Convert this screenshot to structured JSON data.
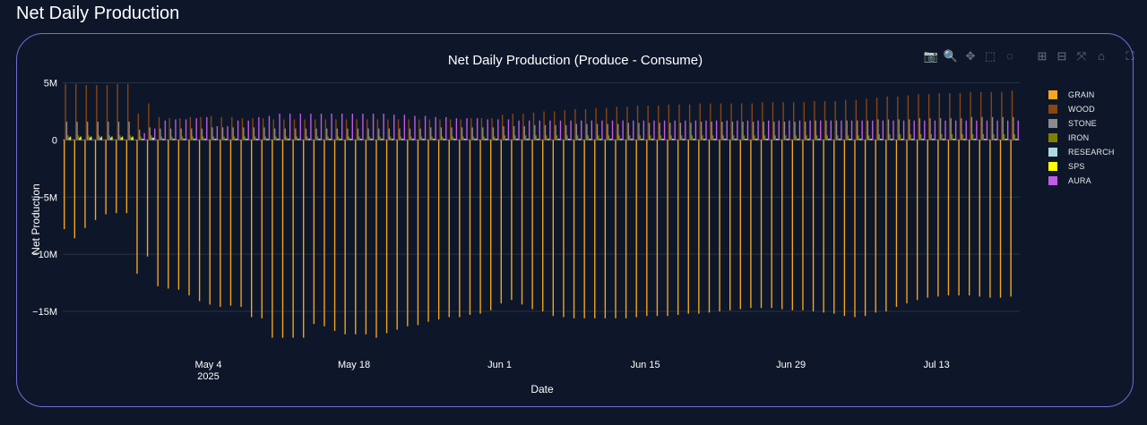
{
  "page": {
    "title": "Net Daily Production"
  },
  "modebar": {
    "buttons": [
      {
        "name": "camera-icon",
        "glyph": "📷"
      },
      {
        "name": "zoom-icon",
        "glyph": "🔍"
      },
      {
        "name": "pan-icon",
        "glyph": "✥"
      },
      {
        "name": "box-select-icon",
        "glyph": "⬚"
      },
      {
        "name": "lasso-select-icon",
        "glyph": "◌"
      },
      {
        "name": "zoom-in-icon",
        "glyph": "⊞"
      },
      {
        "name": "zoom-out-icon",
        "glyph": "⊟"
      },
      {
        "name": "autoscale-icon",
        "glyph": "⤧"
      },
      {
        "name": "reset-axes-icon",
        "glyph": "⌂"
      },
      {
        "name": "fullscreen-icon",
        "glyph": "⛶"
      }
    ]
  },
  "chart_data": {
    "type": "bar",
    "title": "Net Daily Production (Produce - Consume)",
    "xlabel": "Date",
    "ylabel": "Net Production",
    "ylim": [
      -17500000,
      5200000
    ],
    "xrange": [
      "2025-04-20",
      "2025-07-21"
    ],
    "yticks": [
      {
        "value": 5000000,
        "label": "5M"
      },
      {
        "value": 0,
        "label": "0"
      },
      {
        "value": -5000000,
        "label": "−5M"
      },
      {
        "value": -10000000,
        "label": "−10M"
      },
      {
        "value": -15000000,
        "label": "−15M"
      }
    ],
    "xticks": [
      {
        "date": "2025-05-04",
        "label": "May 4",
        "sub": "2025"
      },
      {
        "date": "2025-05-18",
        "label": "May 18",
        "sub": ""
      },
      {
        "date": "2025-06-01",
        "label": "Jun 1",
        "sub": ""
      },
      {
        "date": "2025-06-15",
        "label": "Jun 15",
        "sub": ""
      },
      {
        "date": "2025-06-29",
        "label": "Jun 29",
        "sub": ""
      },
      {
        "date": "2025-07-13",
        "label": "Jul 13",
        "sub": ""
      }
    ],
    "grid": true,
    "legend_position": "right",
    "colors": {
      "GRAIN": "#f5a623",
      "WOOD": "#8b4513",
      "STONE": "#8c8c8c",
      "IRON": "#808000",
      "RESEARCH": "#add8e6",
      "SPS": "#ffff00",
      "AURA": "#c15ce8"
    },
    "x": [
      "2025-04-20",
      "2025-04-21",
      "2025-04-22",
      "2025-04-23",
      "2025-04-24",
      "2025-04-25",
      "2025-04-26",
      "2025-04-27",
      "2025-04-28",
      "2025-04-29",
      "2025-04-30",
      "2025-05-01",
      "2025-05-02",
      "2025-05-03",
      "2025-05-04",
      "2025-05-05",
      "2025-05-06",
      "2025-05-07",
      "2025-05-08",
      "2025-05-09",
      "2025-05-10",
      "2025-05-11",
      "2025-05-12",
      "2025-05-13",
      "2025-05-14",
      "2025-05-15",
      "2025-05-16",
      "2025-05-17",
      "2025-05-18",
      "2025-05-19",
      "2025-05-20",
      "2025-05-21",
      "2025-05-22",
      "2025-05-23",
      "2025-05-24",
      "2025-05-25",
      "2025-05-26",
      "2025-05-27",
      "2025-05-28",
      "2025-05-29",
      "2025-05-30",
      "2025-05-31",
      "2025-06-01",
      "2025-06-02",
      "2025-06-03",
      "2025-06-04",
      "2025-06-05",
      "2025-06-06",
      "2025-06-07",
      "2025-06-08",
      "2025-06-09",
      "2025-06-10",
      "2025-06-11",
      "2025-06-12",
      "2025-06-13",
      "2025-06-14",
      "2025-06-15",
      "2025-06-16",
      "2025-06-17",
      "2025-06-18",
      "2025-06-19",
      "2025-06-20",
      "2025-06-21",
      "2025-06-22",
      "2025-06-23",
      "2025-06-24",
      "2025-06-25",
      "2025-06-26",
      "2025-06-27",
      "2025-06-28",
      "2025-06-29",
      "2025-06-30",
      "2025-07-01",
      "2025-07-02",
      "2025-07-03",
      "2025-07-04",
      "2025-07-05",
      "2025-07-06",
      "2025-07-07",
      "2025-07-08",
      "2025-07-09",
      "2025-07-10",
      "2025-07-11",
      "2025-07-12",
      "2025-07-13",
      "2025-07-14",
      "2025-07-15",
      "2025-07-16",
      "2025-07-17",
      "2025-07-18",
      "2025-07-19",
      "2025-07-20"
    ],
    "series": [
      {
        "name": "GRAIN",
        "values": [
          -7800000,
          -8600000,
          -7700000,
          -7000000,
          -6500000,
          -6400000,
          -6400000,
          -11700000,
          -10200000,
          -12800000,
          -13000000,
          -13100000,
          -13600000,
          -14100000,
          -14400000,
          -14600000,
          -14500000,
          -14600000,
          -15500000,
          -15600000,
          -17300000,
          -17300000,
          -17300000,
          -17300000,
          -16100000,
          -16300000,
          -16700000,
          -17000000,
          -17000000,
          -17000000,
          -17300000,
          -16900000,
          -16600000,
          -16300000,
          -16200000,
          -15900000,
          -15700000,
          -15500000,
          -15500000,
          -15300000,
          -15200000,
          -14900000,
          -14300000,
          -14000000,
          -14400000,
          -14800000,
          -15000000,
          -15400000,
          -15500000,
          -15600000,
          -15600000,
          -15600000,
          -15600000,
          -15600000,
          -15600000,
          -15500000,
          -15400000,
          -15400000,
          -15400000,
          -15300000,
          -15200000,
          -15200000,
          -15100000,
          -15000000,
          -14900000,
          -14800000,
          -14700000,
          -14700000,
          -14700000,
          -14800000,
          -14900000,
          -14900000,
          -15000000,
          -15100000,
          -15200000,
          -15400000,
          -15500000,
          -15400000,
          -15100000,
          -15000000,
          -14600000,
          -14300000,
          -14000000,
          -13800000,
          -13700000,
          -13600000,
          -13600000,
          -13600000,
          -13700000,
          -13800000,
          -13800000,
          -13700000
        ]
      },
      {
        "name": "WOOD",
        "values": [
          4900000,
          4900000,
          4800000,
          4800000,
          4800000,
          4900000,
          4900000,
          2300000,
          3200000,
          2000000,
          1900000,
          1900000,
          2000000,
          2000000,
          2100000,
          2000000,
          2000000,
          1900000,
          1900000,
          1900000,
          1800000,
          1800000,
          1800000,
          1800000,
          1800000,
          1800000,
          1800000,
          1800000,
          1800000,
          1800000,
          1800000,
          1800000,
          1800000,
          1800000,
          1800000,
          1800000,
          1800000,
          1800000,
          1800000,
          1900000,
          1900000,
          1900000,
          2200000,
          2300000,
          2300000,
          2400000,
          2500000,
          2500000,
          2600000,
          2700000,
          2700000,
          2800000,
          2800000,
          2900000,
          2900000,
          3000000,
          3000000,
          3000000,
          3100000,
          3100000,
          3100000,
          3200000,
          3200000,
          3200000,
          3200000,
          3200000,
          3200000,
          3300000,
          3300000,
          3300000,
          3300000,
          3300000,
          3400000,
          3400000,
          3400000,
          3500000,
          3500000,
          3600000,
          3700000,
          3800000,
          3800000,
          3900000,
          4000000,
          4000000,
          4100000,
          4100000,
          4100000,
          4200000,
          4200000,
          4200000,
          4200000,
          4300000
        ]
      },
      {
        "name": "STONE",
        "values": [
          1600000,
          1600000,
          1600000,
          1600000,
          1600000,
          1600000,
          1600000,
          900000,
          1100000,
          1000000,
          1000000,
          1000000,
          1000000,
          1000000,
          1100000,
          1100000,
          1100000,
          1100000,
          1100000,
          1100000,
          1000000,
          1000000,
          1000000,
          1000000,
          1000000,
          1000000,
          1000000,
          1000000,
          1000000,
          1000000,
          1000000,
          1000000,
          1000000,
          1000000,
          1000000,
          1100000,
          1100000,
          1100000,
          1100000,
          1100000,
          1100000,
          1100000,
          1200000,
          1200000,
          1200000,
          1300000,
          1300000,
          1300000,
          1300000,
          1400000,
          1400000,
          1400000,
          1400000,
          1400000,
          1500000,
          1500000,
          1500000,
          1500000,
          1500000,
          1500000,
          1500000,
          1600000,
          1600000,
          1600000,
          1600000,
          1600000,
          1600000,
          1600000,
          1600000,
          1600000,
          1600000,
          1600000,
          1700000,
          1700000,
          1700000,
          1700000,
          1700000,
          1700000,
          1800000,
          1800000,
          1800000,
          1800000,
          1900000,
          1900000,
          1900000,
          1900000,
          1900000,
          2000000,
          2000000,
          2000000,
          2000000,
          2000000
        ]
      },
      {
        "name": "IRON",
        "values": [
          400000,
          400000,
          400000,
          400000,
          400000,
          400000,
          400000,
          300000,
          400000,
          300000,
          300000,
          300000,
          300000,
          300000,
          300000,
          300000,
          300000,
          300000,
          300000,
          300000,
          300000,
          300000,
          300000,
          300000,
          300000,
          300000,
          300000,
          300000,
          300000,
          300000,
          300000,
          300000,
          300000,
          300000,
          300000,
          300000,
          300000,
          300000,
          300000,
          300000,
          300000,
          300000,
          400000,
          400000,
          400000,
          400000,
          400000,
          400000,
          400000,
          400000,
          400000,
          400000,
          400000,
          400000,
          400000,
          400000,
          400000,
          400000,
          400000,
          400000,
          400000,
          400000,
          400000,
          400000,
          400000,
          400000,
          400000,
          400000,
          400000,
          400000,
          400000,
          400000,
          400000,
          400000,
          400000,
          400000,
          400000,
          400000,
          500000,
          500000,
          500000,
          500000,
          500000,
          500000,
          500000,
          500000,
          500000,
          500000,
          500000,
          500000,
          500000,
          500000
        ]
      },
      {
        "name": "RESEARCH",
        "values": [
          200000,
          200000,
          200000,
          200000,
          200000,
          200000,
          200000,
          100000,
          200000,
          100000,
          100000,
          100000,
          100000,
          100000,
          100000,
          100000,
          100000,
          100000,
          100000,
          100000,
          100000,
          100000,
          100000,
          100000,
          100000,
          100000,
          100000,
          100000,
          100000,
          100000,
          100000,
          100000,
          100000,
          100000,
          100000,
          100000,
          100000,
          100000,
          100000,
          100000,
          100000,
          100000,
          100000,
          100000,
          100000,
          100000,
          100000,
          100000,
          100000,
          100000,
          100000,
          100000,
          100000,
          100000,
          100000,
          100000,
          100000,
          100000,
          100000,
          100000,
          100000,
          100000,
          100000,
          100000,
          100000,
          100000,
          100000,
          100000,
          100000,
          100000,
          100000,
          100000,
          100000,
          100000,
          100000,
          100000,
          100000,
          100000,
          100000,
          100000,
          100000,
          100000,
          100000,
          100000,
          100000,
          100000,
          100000,
          100000,
          100000,
          100000,
          100000,
          100000
        ]
      },
      {
        "name": "SPS",
        "values": [
          300000,
          300000,
          300000,
          300000,
          300000,
          300000,
          300000,
          100000,
          200000,
          100000,
          100000,
          100000,
          100000,
          100000,
          100000,
          100000,
          100000,
          100000,
          100000,
          100000,
          100000,
          100000,
          100000,
          100000,
          100000,
          100000,
          100000,
          100000,
          100000,
          100000,
          100000,
          100000,
          100000,
          100000,
          100000,
          100000,
          100000,
          100000,
          100000,
          100000,
          100000,
          100000,
          100000,
          100000,
          100000,
          100000,
          100000,
          100000,
          100000,
          100000,
          100000,
          100000,
          100000,
          100000,
          100000,
          100000,
          100000,
          100000,
          100000,
          100000,
          100000,
          100000,
          100000,
          100000,
          100000,
          100000,
          100000,
          100000,
          100000,
          100000,
          100000,
          100000,
          100000,
          100000,
          100000,
          100000,
          100000,
          100000,
          100000,
          100000,
          100000,
          100000,
          100000,
          100000,
          100000,
          100000,
          100000,
          100000,
          100000,
          100000,
          100000,
          100000
        ]
      },
      {
        "name": "AURA",
        "values": [
          0,
          0,
          0,
          0,
          0,
          0,
          0,
          600000,
          1000000,
          1700000,
          1800000,
          1800000,
          1900000,
          2000000,
          1200000,
          1200000,
          1700000,
          1700000,
          2000000,
          2100000,
          2300000,
          2300000,
          2300000,
          2300000,
          2300000,
          2300000,
          2300000,
          2300000,
          2300000,
          2300000,
          2300000,
          2200000,
          2200000,
          2100000,
          2100000,
          2000000,
          2000000,
          1900000,
          1900000,
          1900000,
          1800000,
          1800000,
          1800000,
          1700000,
          1700000,
          1700000,
          1700000,
          1700000,
          1700000,
          1700000,
          1700000,
          1700000,
          1700000,
          1700000,
          1700000,
          1700000,
          1700000,
          1700000,
          1700000,
          1700000,
          1700000,
          1700000,
          1700000,
          1700000,
          1700000,
          1700000,
          1700000,
          1700000,
          1700000,
          1700000,
          1700000,
          1700000,
          1700000,
          1700000,
          1700000,
          1700000,
          1700000,
          1700000,
          1700000,
          1700000,
          1700000,
          1700000,
          1700000,
          1700000,
          1700000,
          1700000,
          1700000,
          1700000,
          1700000,
          1700000,
          1700000,
          1700000
        ]
      }
    ]
  }
}
